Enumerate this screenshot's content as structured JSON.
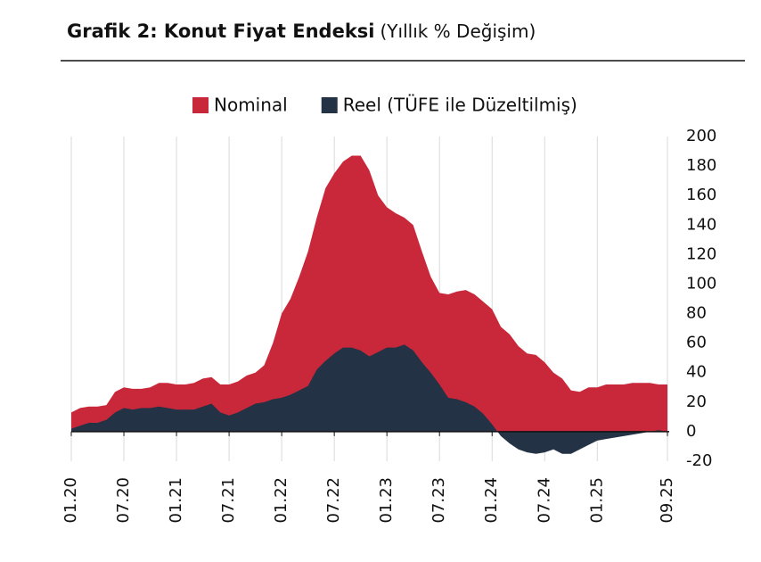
{
  "chart_data": {
    "type": "area",
    "title": "Grafik 2: Konut Fiyat Endeksi",
    "subtitle": "(Yıllık % Değişim)",
    "categories": [
      "01.20",
      null,
      null,
      null,
      null,
      null,
      "07.20",
      null,
      null,
      null,
      null,
      null,
      "01.21",
      null,
      null,
      null,
      null,
      null,
      "07.21",
      null,
      null,
      null,
      null,
      null,
      "01.22",
      null,
      null,
      null,
      null,
      null,
      "07.22",
      null,
      null,
      null,
      null,
      null,
      "01.23",
      null,
      null,
      null,
      null,
      null,
      "07.23",
      null,
      null,
      null,
      null,
      null,
      "01.24",
      null,
      null,
      null,
      null,
      null,
      "07.24",
      null,
      null,
      null,
      null,
      null,
      "01.25",
      null,
      null,
      null,
      null,
      null,
      null,
      null,
      "09.25"
    ],
    "series": [
      {
        "name": "Nominal",
        "color": "#c8283a",
        "values": [
          13,
          16,
          17,
          17,
          18,
          27,
          30,
          29,
          29,
          30,
          33,
          33,
          32,
          32,
          33,
          36,
          37,
          32,
          32,
          34,
          38,
          40,
          45,
          60,
          80,
          90,
          105,
          122,
          145,
          165,
          175,
          183,
          187,
          187,
          177,
          160,
          152,
          148,
          145,
          140,
          122,
          105,
          94,
          93,
          95,
          96,
          93,
          88,
          83,
          71,
          66,
          58,
          53,
          52,
          47,
          40,
          36,
          28,
          27,
          30,
          30,
          32,
          32,
          32,
          33,
          33,
          33,
          32,
          32
        ]
      },
      {
        "name": "Reel (TÜFE ile Düzeltilmiş)",
        "color": "#243246",
        "values": [
          2,
          4,
          6,
          6,
          8,
          13,
          16,
          15,
          16,
          16,
          17,
          16,
          15,
          15,
          15,
          17,
          19,
          13,
          11,
          13,
          16,
          19,
          20,
          22,
          23,
          25,
          28,
          31,
          42,
          48,
          53,
          57,
          57,
          55,
          51,
          54,
          57,
          57,
          59,
          55,
          47,
          40,
          32,
          23,
          22,
          20,
          17,
          12,
          5,
          -3,
          -8,
          -12,
          -14,
          -15,
          -14,
          -12,
          -15,
          -15,
          -12,
          -9,
          -6,
          -5,
          -4,
          -3,
          -2,
          -1,
          0,
          1,
          0
        ]
      }
    ],
    "ylim": [
      -20,
      200
    ],
    "yticks": [
      -20,
      0,
      20,
      40,
      60,
      80,
      100,
      120,
      140,
      160,
      180,
      200
    ],
    "grid": true,
    "legend": "top"
  }
}
